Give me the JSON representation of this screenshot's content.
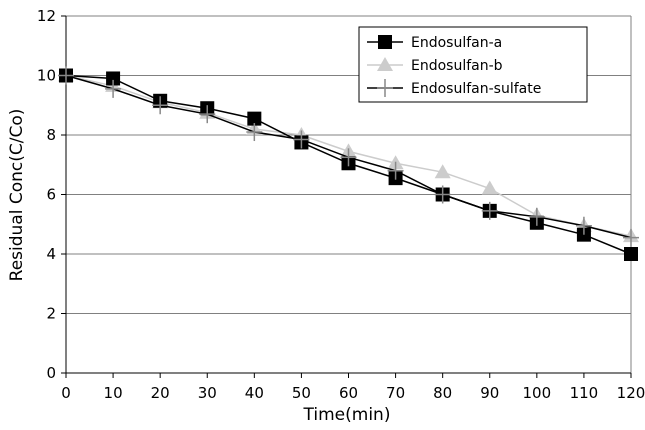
{
  "chart_data": {
    "type": "line",
    "title": "",
    "xlabel": "Time(min)",
    "ylabel": "Residual Conc(C/Co)",
    "x": [
      0,
      10,
      20,
      30,
      40,
      50,
      60,
      70,
      80,
      90,
      100,
      110,
      120
    ],
    "xlim": [
      0,
      120
    ],
    "ylim": [
      0,
      12
    ],
    "x_ticks": [
      "0",
      "10",
      "20",
      "30",
      "40",
      "50",
      "60",
      "70",
      "80",
      "90",
      "100",
      "110",
      "120"
    ],
    "y_ticks": [
      "0",
      "2",
      "4",
      "6",
      "8",
      "10",
      "12"
    ],
    "grid": "horizontal",
    "legend_position": "top-right",
    "series": [
      {
        "name": "Endosulfan-a",
        "color": "#000000",
        "marker": "square",
        "values": [
          10.0,
          9.9,
          9.15,
          8.9,
          8.55,
          7.75,
          7.05,
          6.55,
          6.0,
          5.45,
          5.05,
          4.65,
          4.0
        ]
      },
      {
        "name": "Endosulfan-b",
        "color": "#cccccc",
        "marker": "triangle",
        "values": [
          10.0,
          9.65,
          9.1,
          8.75,
          8.2,
          8.0,
          7.45,
          7.05,
          6.75,
          6.2,
          5.3,
          4.95,
          4.6
        ]
      },
      {
        "name": "Endosulfan-sulfate",
        "color": "#000000",
        "marker": "plus",
        "values": [
          10.0,
          9.55,
          9.0,
          8.7,
          8.1,
          7.85,
          7.25,
          6.8,
          6.0,
          5.45,
          5.25,
          4.95,
          4.55
        ]
      }
    ]
  }
}
